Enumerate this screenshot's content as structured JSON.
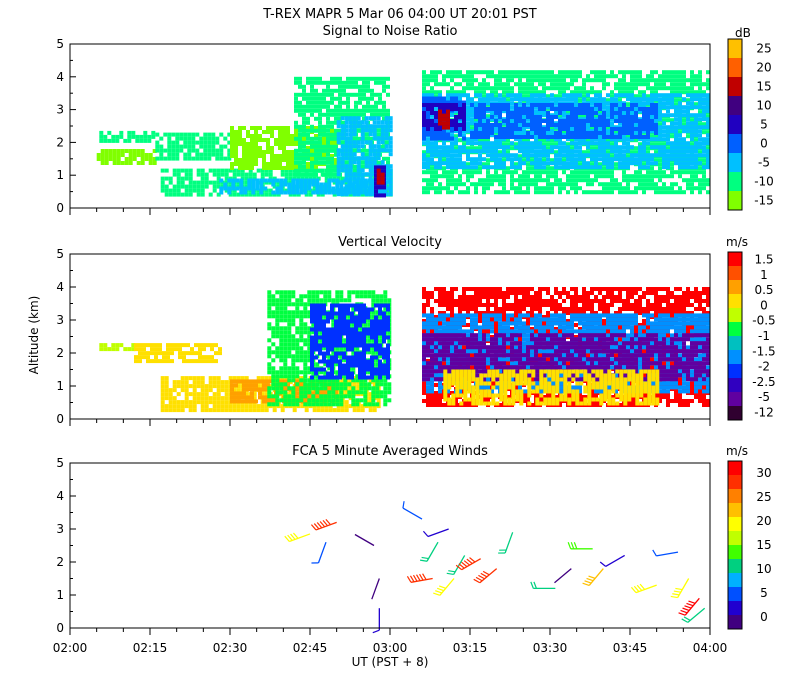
{
  "header": {
    "title_line": "T-REX   MAPR   5 Mar 06   04:00 UT   20:01   PST"
  },
  "x_axis": {
    "label": "UT  (PST + 8)",
    "range_minutes": [
      0,
      120
    ],
    "ticks": [
      {
        "min": 0,
        "label": "02:00"
      },
      {
        "min": 15,
        "label": "02:15"
      },
      {
        "min": 30,
        "label": "02:30"
      },
      {
        "min": 45,
        "label": "02:45"
      },
      {
        "min": 60,
        "label": "03:00"
      },
      {
        "min": 75,
        "label": "03:15"
      },
      {
        "min": 90,
        "label": "03:30"
      },
      {
        "min": 105,
        "label": "03:45"
      },
      {
        "min": 120,
        "label": "04:00"
      }
    ]
  },
  "chart_data": [
    {
      "type": "heatmap",
      "title": "Signal to Noise Ratio",
      "ylabel": "",
      "ylim": [
        0,
        5
      ],
      "yticks": [
        "0",
        "1",
        "2",
        "3",
        "4",
        "5"
      ],
      "colorbar": {
        "unit": "dB",
        "levels": [
          "-15",
          "-10",
          "-5",
          "0",
          "5",
          "10",
          "15",
          "20",
          "25"
        ],
        "colors": [
          "#80ff00",
          "#00ff80",
          "#00c0ff",
          "#0060ff",
          "#2000c0",
          "#400080",
          "#c00000",
          "#ff6000",
          "#ffc000"
        ]
      },
      "regions": [
        {
          "t0": 5.5,
          "t1": 16,
          "z0": 2.1,
          "z1": 2.35,
          "level": 1
        },
        {
          "t0": 5,
          "t1": 16,
          "z0": 1.4,
          "z1": 1.8,
          "level": 0
        },
        {
          "t0": 16,
          "t1": 30,
          "z0": 1.5,
          "z1": 2.3,
          "level": 1
        },
        {
          "t0": 17,
          "t1": 60,
          "z0": 0.4,
          "z1": 1.2,
          "level": 1
        },
        {
          "t0": 28,
          "t1": 60,
          "z0": 0.5,
          "z1": 0.9,
          "level": 2
        },
        {
          "t0": 30,
          "t1": 50,
          "z0": 1.2,
          "z1": 2.5,
          "level": 0
        },
        {
          "t0": 42,
          "t1": 60,
          "z0": 1.0,
          "z1": 4.0,
          "level": 1
        },
        {
          "t0": 50,
          "t1": 60,
          "z0": 0.4,
          "z1": 2.8,
          "level": 2
        },
        {
          "t0": 57,
          "t1": 59,
          "z0": 0.4,
          "z1": 1.3,
          "level": 4
        },
        {
          "t0": 57.5,
          "t1": 58.5,
          "z0": 0.8,
          "z1": 1.2,
          "level": 6
        },
        {
          "t0": 66,
          "t1": 120,
          "z0": 0.5,
          "z1": 4.2,
          "level": 1
        },
        {
          "t0": 66,
          "t1": 120,
          "z0": 1.2,
          "z1": 3.5,
          "level": 2
        },
        {
          "t0": 66,
          "t1": 74,
          "z0": 2.1,
          "z1": 3.4,
          "level": 3
        },
        {
          "t0": 66,
          "t1": 74,
          "z0": 2.4,
          "z1": 3.2,
          "level": 4
        },
        {
          "t0": 69,
          "t1": 71,
          "z0": 2.5,
          "z1": 3.0,
          "level": 6
        },
        {
          "t0": 75,
          "t1": 110,
          "z0": 2.2,
          "z1": 3.2,
          "level": 3
        }
      ]
    },
    {
      "type": "heatmap",
      "title": "Vertical Velocity",
      "ylabel": "Altitude  (km)",
      "ylim": [
        0,
        5
      ],
      "yticks": [
        "0",
        "1",
        "2",
        "3",
        "4",
        "5"
      ],
      "colorbar": {
        "unit": "m/s",
        "levels": [
          "-12",
          "-5",
          "-2.5",
          "-2",
          "-1.5",
          "-1",
          "-0.5",
          "0",
          "0.5",
          "1",
          "1.5"
        ],
        "colors": [
          "#300030",
          "#6000a0",
          "#3000c0",
          "#0030ff",
          "#0090ff",
          "#00c0c0",
          "#00ff40",
          "#c0ff00",
          "#ffe000",
          "#ffa000",
          "#ff5000",
          "#ff0000"
        ]
      },
      "regions": [
        {
          "t0": 5.5,
          "t1": 12,
          "z0": 2.1,
          "z1": 2.3,
          "level": 7
        },
        {
          "t0": 12,
          "t1": 28,
          "z0": 1.8,
          "z1": 2.3,
          "level": 8
        },
        {
          "t0": 17,
          "t1": 58,
          "z0": 0.3,
          "z1": 1.3,
          "level": 8
        },
        {
          "t0": 30,
          "t1": 50,
          "z0": 0.5,
          "z1": 1.2,
          "level": 9
        },
        {
          "t0": 37,
          "t1": 60,
          "z0": 0.4,
          "z1": 3.9,
          "level": 6
        },
        {
          "t0": 45,
          "t1": 60,
          "z0": 1.2,
          "z1": 3.5,
          "level": 3
        },
        {
          "t0": 66,
          "t1": 120,
          "z0": 0.4,
          "z1": 4.0,
          "level": 11
        },
        {
          "t0": 66,
          "t1": 120,
          "z0": 0.8,
          "z1": 3.2,
          "level": 4
        },
        {
          "t0": 66,
          "t1": 120,
          "z0": 1.2,
          "z1": 2.6,
          "level": 1
        },
        {
          "t0": 70,
          "t1": 110,
          "z0": 0.5,
          "z1": 1.5,
          "level": 8
        }
      ]
    },
    {
      "type": "scatter",
      "title": "FCA 5 Minute Averaged Winds",
      "ylabel": "",
      "ylim": [
        0,
        5
      ],
      "yticks": [
        "0",
        "1",
        "2",
        "3",
        "4",
        "5"
      ],
      "colorbar": {
        "unit": "m/s",
        "levels": [
          "0",
          "5",
          "10",
          "15",
          "20",
          "25",
          "30"
        ],
        "colors": [
          "#400080",
          "#2000d0",
          "#0050ff",
          "#00b0ff",
          "#00d080",
          "#40ff00",
          "#c0ff00",
          "#ffff00",
          "#ffc000",
          "#ff8000",
          "#ff3000",
          "#ff0000"
        ]
      },
      "barbs": [
        {
          "t": 45,
          "z": 2.85,
          "dir": 250,
          "spd": 18
        },
        {
          "t": 48,
          "z": 2.6,
          "dir": 200,
          "spd": 5
        },
        {
          "t": 50,
          "z": 3.2,
          "dir": 250,
          "spd": 28
        },
        {
          "t": 57,
          "z": 2.5,
          "dir": 300,
          "spd": 0
        },
        {
          "t": 58,
          "z": 1.5,
          "dir": 200,
          "spd": 0
        },
        {
          "t": 58,
          "z": 0.6,
          "dir": 180,
          "spd": 3
        },
        {
          "t": 66,
          "z": 3.3,
          "dir": 300,
          "spd": 5
        },
        {
          "t": 68,
          "z": 1.5,
          "dir": 260,
          "spd": 28
        },
        {
          "t": 69,
          "z": 2.6,
          "dir": 210,
          "spd": 12
        },
        {
          "t": 71,
          "z": 3.0,
          "dir": 250,
          "spd": 3
        },
        {
          "t": 72,
          "z": 1.5,
          "dir": 220,
          "spd": 18
        },
        {
          "t": 74,
          "z": 2.2,
          "dir": 210,
          "spd": 12
        },
        {
          "t": 77,
          "z": 2.1,
          "dir": 240,
          "spd": 28
        },
        {
          "t": 80,
          "z": 1.8,
          "dir": 230,
          "spd": 26
        },
        {
          "t": 83,
          "z": 2.9,
          "dir": 200,
          "spd": 10
        },
        {
          "t": 91,
          "z": 1.2,
          "dir": 270,
          "spd": 12
        },
        {
          "t": 94,
          "z": 1.8,
          "dir": 230,
          "spd": 0
        },
        {
          "t": 98,
          "z": 2.4,
          "dir": 270,
          "spd": 14
        },
        {
          "t": 100,
          "z": 1.8,
          "dir": 220,
          "spd": 22
        },
        {
          "t": 104,
          "z": 2.2,
          "dir": 240,
          "spd": 3
        },
        {
          "t": 110,
          "z": 1.3,
          "dir": 250,
          "spd": 18
        },
        {
          "t": 114,
          "z": 2.3,
          "dir": 260,
          "spd": 5
        },
        {
          "t": 116,
          "z": 1.5,
          "dir": 210,
          "spd": 20
        },
        {
          "t": 118,
          "z": 0.9,
          "dir": 220,
          "spd": 30
        },
        {
          "t": 119,
          "z": 0.6,
          "dir": 230,
          "spd": 12
        }
      ]
    }
  ]
}
